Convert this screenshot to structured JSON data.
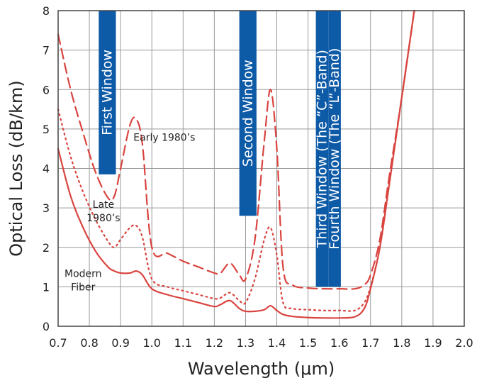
{
  "chart_data": {
    "type": "line",
    "title": "",
    "xlabel": "Wavelength (μm)",
    "ylabel": "Optical Loss (dB/km)",
    "xlim": [
      0.7,
      2.0
    ],
    "ylim": [
      0,
      8
    ],
    "xticks": [
      "0.7",
      "0.8",
      "0.9",
      "1.0",
      "1.1",
      "1.2",
      "1.3",
      "1.4",
      "1.5",
      "1.6",
      "1.7",
      "1.8",
      "1.9",
      "2.0"
    ],
    "yticks": [
      "0",
      "1",
      "2",
      "3",
      "4",
      "5",
      "6",
      "7",
      "8"
    ],
    "grid": true,
    "colors": {
      "series": "#d9443f",
      "bands": "#0d5aa7"
    },
    "bands": [
      {
        "label": "First Window",
        "x0": 0.83,
        "x1": 0.885,
        "y0": 3.85,
        "y1": 8
      },
      {
        "label": "Second Window",
        "x0": 1.28,
        "x1": 1.335,
        "y0": 2.8,
        "y1": 8
      },
      {
        "label": "Third Window (The “C”-Band)",
        "x0": 1.525,
        "x1": 1.565,
        "y0": 1.0,
        "y1": 8
      },
      {
        "label": "Fourth Window (The “L”-Band)",
        "x0": 1.565,
        "x1": 1.605,
        "y0": 1.0,
        "y1": 8
      }
    ],
    "annotations": [
      {
        "lines": [
          "Early 1980’s"
        ],
        "x": 1.04,
        "y": 4.7
      },
      {
        "lines": [
          "Late",
          "1980’s"
        ],
        "x": 0.845,
        "y": 3.0
      },
      {
        "lines": [
          "Modern",
          "Fiber"
        ],
        "x": 0.78,
        "y": 1.25
      }
    ],
    "series": [
      {
        "style": "dashed",
        "x": [
          0.7,
          0.74,
          0.78,
          0.82,
          0.86,
          0.88,
          0.9,
          0.93,
          0.95,
          0.97,
          1.0,
          1.05,
          1.1,
          1.15,
          1.2,
          1.22,
          1.25,
          1.28,
          1.3,
          1.33,
          1.36,
          1.38,
          1.4,
          1.42,
          1.45,
          1.5,
          1.55,
          1.6,
          1.65,
          1.68,
          1.7,
          1.73,
          1.76,
          1.8,
          1.84
        ],
        "y": [
          7.4,
          6.0,
          4.9,
          3.9,
          3.25,
          3.3,
          4.0,
          5.1,
          5.25,
          4.6,
          2.0,
          1.85,
          1.65,
          1.5,
          1.35,
          1.35,
          1.6,
          1.3,
          1.2,
          2.2,
          4.7,
          6.0,
          4.5,
          1.5,
          1.05,
          0.97,
          0.95,
          0.95,
          0.95,
          1.05,
          1.3,
          2.2,
          3.8,
          5.8,
          8.0
        ]
      },
      {
        "style": "dotted",
        "x": [
          0.7,
          0.74,
          0.78,
          0.82,
          0.86,
          0.88,
          0.9,
          0.93,
          0.95,
          0.97,
          1.0,
          1.05,
          1.1,
          1.15,
          1.2,
          1.22,
          1.25,
          1.28,
          1.3,
          1.33,
          1.36,
          1.38,
          1.4,
          1.42,
          1.45,
          1.5,
          1.55,
          1.6,
          1.65,
          1.68,
          1.7,
          1.73,
          1.76,
          1.8,
          1.84
        ],
        "y": [
          5.5,
          4.3,
          3.4,
          2.7,
          2.15,
          2.0,
          2.2,
          2.5,
          2.55,
          2.25,
          1.2,
          1.0,
          0.9,
          0.8,
          0.7,
          0.72,
          0.85,
          0.65,
          0.6,
          1.2,
          2.2,
          2.5,
          1.8,
          0.6,
          0.45,
          0.42,
          0.4,
          0.4,
          0.4,
          0.6,
          1.0,
          2.0,
          3.6,
          5.8,
          8.0
        ]
      },
      {
        "style": "solid",
        "x": [
          0.7,
          0.74,
          0.78,
          0.82,
          0.86,
          0.88,
          0.9,
          0.93,
          0.95,
          0.97,
          1.0,
          1.05,
          1.1,
          1.15,
          1.2,
          1.22,
          1.25,
          1.28,
          1.3,
          1.33,
          1.36,
          1.38,
          1.4,
          1.42,
          1.45,
          1.5,
          1.55,
          1.6,
          1.65,
          1.68,
          1.7,
          1.73,
          1.76,
          1.8,
          1.84
        ],
        "y": [
          4.5,
          3.3,
          2.5,
          1.9,
          1.5,
          1.4,
          1.35,
          1.35,
          1.4,
          1.3,
          0.95,
          0.8,
          0.7,
          0.6,
          0.5,
          0.55,
          0.65,
          0.45,
          0.38,
          0.38,
          0.42,
          0.52,
          0.4,
          0.3,
          0.25,
          0.22,
          0.21,
          0.21,
          0.24,
          0.45,
          0.95,
          2.0,
          3.6,
          5.8,
          8.0
        ]
      }
    ]
  }
}
